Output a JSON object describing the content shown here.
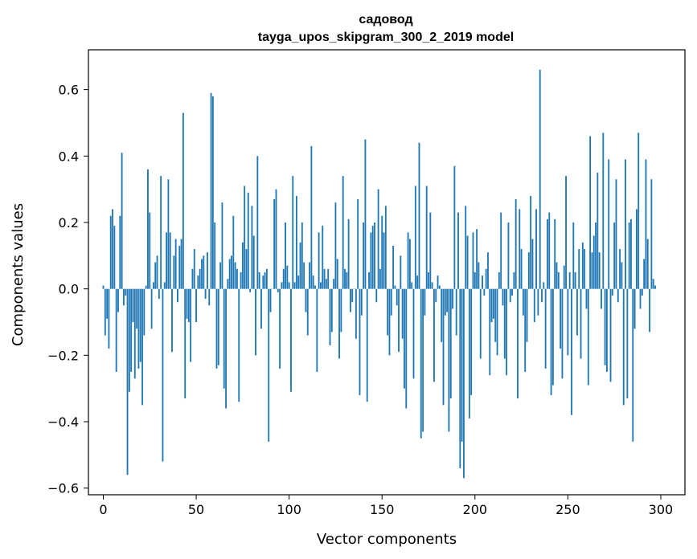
{
  "chart_data": {
    "type": "bar",
    "title": "садовод",
    "subtitle": "tayga_upos_skipgram_300_2_2019 model",
    "xlabel": "Vector components",
    "ylabel": "Components values",
    "xlim": [
      -8,
      313
    ],
    "ylim": [
      -0.62,
      0.72
    ],
    "xticks": [
      0,
      50,
      100,
      150,
      200,
      250,
      300
    ],
    "yticks": [
      -0.6,
      -0.4,
      -0.2,
      0.0,
      0.2,
      0.4,
      0.6
    ],
    "xtick_labels": [
      "0",
      "50",
      "100",
      "150",
      "200",
      "250",
      "300"
    ],
    "ytick_labels": [
      "−0.6",
      "−0.4",
      "−0.2",
      "0.0",
      "0.2",
      "0.4",
      "0.6"
    ],
    "grid": false,
    "color": "#1f77b4",
    "values": [
      0.01,
      -0.14,
      -0.09,
      -0.18,
      0.22,
      0.24,
      0.19,
      -0.25,
      -0.07,
      0.22,
      0.41,
      -0.05,
      -0.02,
      -0.56,
      -0.31,
      -0.25,
      -0.1,
      -0.27,
      -0.12,
      -0.24,
      -0.22,
      -0.35,
      -0.14,
      0.01,
      0.36,
      0.23,
      -0.12,
      0.02,
      0.08,
      0.1,
      -0.03,
      0.34,
      -0.52,
      0.02,
      0.17,
      0.33,
      0.17,
      -0.19,
      0.1,
      0.15,
      -0.04,
      0.13,
      0.15,
      0.53,
      -0.33,
      -0.09,
      -0.1,
      -0.22,
      0.06,
      0.12,
      -0.1,
      0.04,
      0.06,
      0.09,
      0.1,
      -0.03,
      0.11,
      -0.05,
      0.59,
      0.58,
      0.2,
      -0.24,
      -0.23,
      0.08,
      0.26,
      -0.3,
      -0.36,
      0.03,
      0.09,
      0.1,
      0.22,
      0.08,
      0.06,
      -0.34,
      0.05,
      0.14,
      0.31,
      0.12,
      0.29,
      -0.01,
      0.25,
      0.16,
      -0.2,
      0.4,
      0.05,
      -0.12,
      0.04,
      0.05,
      0.06,
      -0.46,
      -0.07,
      0.0,
      0.27,
      0.3,
      -0.01,
      -0.24,
      0.02,
      0.06,
      0.2,
      0.07,
      0.02,
      -0.31,
      0.34,
      0.02,
      0.28,
      0.04,
      0.14,
      0.2,
      0.08,
      -0.07,
      -0.14,
      0.08,
      0.43,
      0.04,
      0.01,
      -0.25,
      0.17,
      0.02,
      0.19,
      0.06,
      0.03,
      0.06,
      -0.17,
      -0.13,
      0.03,
      0.26,
      0.09,
      -0.21,
      -0.13,
      0.34,
      0.06,
      0.05,
      0.21,
      -0.07,
      -0.04,
      0.0,
      -0.15,
      0.27,
      -0.32,
      -0.08,
      0.2,
      0.45,
      -0.34,
      0.05,
      0.17,
      0.19,
      0.2,
      -0.04,
      0.3,
      0.06,
      0.22,
      0.17,
      0.25,
      -0.14,
      -0.2,
      -0.08,
      0.13,
      0.01,
      -0.05,
      -0.19,
      0.1,
      -0.15,
      -0.3,
      -0.36,
      0.17,
      0.15,
      0.02,
      -0.27,
      0.31,
      0.04,
      0.44,
      -0.45,
      -0.43,
      -0.08,
      0.31,
      0.05,
      0.23,
      0.02,
      -0.28,
      -0.04,
      0.04,
      0.01,
      -0.16,
      -0.35,
      -0.08,
      -0.07,
      -0.43,
      -0.33,
      -0.06,
      0.37,
      -0.14,
      0.23,
      -0.54,
      -0.46,
      -0.57,
      0.25,
      0.16,
      -0.39,
      -0.32,
      0.17,
      0.05,
      0.18,
      0.08,
      -0.21,
      0.04,
      -0.02,
      0.06,
      0.11,
      -0.26,
      -0.1,
      -0.09,
      -0.16,
      -0.2,
      0.05,
      0.23,
      -0.05,
      -0.21,
      -0.26,
      0.2,
      -0.04,
      -0.02,
      0.05,
      0.27,
      -0.33,
      0.24,
      0.12,
      -0.08,
      -0.25,
      -0.16,
      0.11,
      0.28,
      0.15,
      -0.1,
      0.24,
      -0.08,
      0.66,
      -0.04,
      0.02,
      -0.24,
      0.21,
      0.23,
      -0.32,
      -0.29,
      0.21,
      0.08,
      0.05,
      -0.18,
      -0.27,
      0.07,
      0.34,
      -0.2,
      0.05,
      -0.38,
      0.2,
      0.05,
      -0.14,
      0.12,
      -0.21,
      0.14,
      0.12,
      -0.06,
      -0.29,
      0.46,
      0.11,
      0.16,
      0.2,
      0.35,
      0.11,
      -0.06,
      0.47,
      -0.23,
      -0.25,
      0.39,
      -0.28,
      -0.02,
      0.2,
      0.33,
      -0.04,
      0.12,
      0.08,
      -0.35,
      0.39,
      -0.33,
      0.2,
      0.21,
      -0.46,
      -0.12,
      0.24,
      0.47,
      -0.06,
      -0.02,
      0.09,
      0.39,
      0.15,
      -0.13,
      0.33,
      0.03,
      0.01
    ]
  }
}
